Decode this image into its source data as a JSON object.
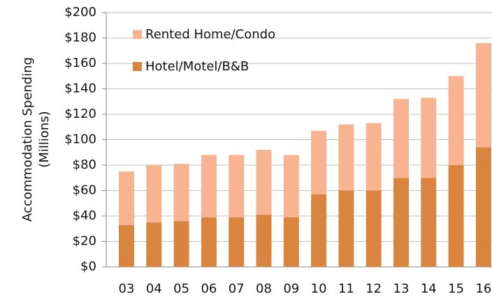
{
  "chart_data": {
    "type": "stacked_bar",
    "ylabel": [
      "Accommodation Spending",
      "(Millions)"
    ],
    "categories": [
      "03",
      "04",
      "05",
      "06",
      "07",
      "08",
      "09",
      "10",
      "11",
      "12",
      "13",
      "14",
      "15",
      "16"
    ],
    "series": [
      {
        "name": "Hotel/Motel/B&B",
        "color": "#d9843f",
        "values": [
          33,
          35,
          36,
          39,
          39,
          41,
          39,
          57,
          60,
          60,
          70,
          70,
          80,
          94
        ]
      },
      {
        "name": "Rented Home/Condo",
        "color": "#f8b490",
        "values": [
          42,
          45,
          45,
          49,
          49,
          51,
          49,
          50,
          52,
          53,
          62,
          63,
          70,
          82
        ]
      }
    ],
    "ylim": [
      0,
      200
    ],
    "yticks": [
      {
        "value": 0,
        "label": "$0"
      },
      {
        "value": 20,
        "label": "$20"
      },
      {
        "value": 40,
        "label": "$40"
      },
      {
        "value": 60,
        "label": "$60"
      },
      {
        "value": 80,
        "label": "$80"
      },
      {
        "value": 100,
        "label": "$100"
      },
      {
        "value": 120,
        "label": "$120"
      },
      {
        "value": 140,
        "label": "$140"
      },
      {
        "value": 160,
        "label": "$160"
      },
      {
        "value": 180,
        "label": "$180"
      },
      {
        "value": 200,
        "label": "$200"
      }
    ],
    "grid": true,
    "legend": "top-left"
  }
}
